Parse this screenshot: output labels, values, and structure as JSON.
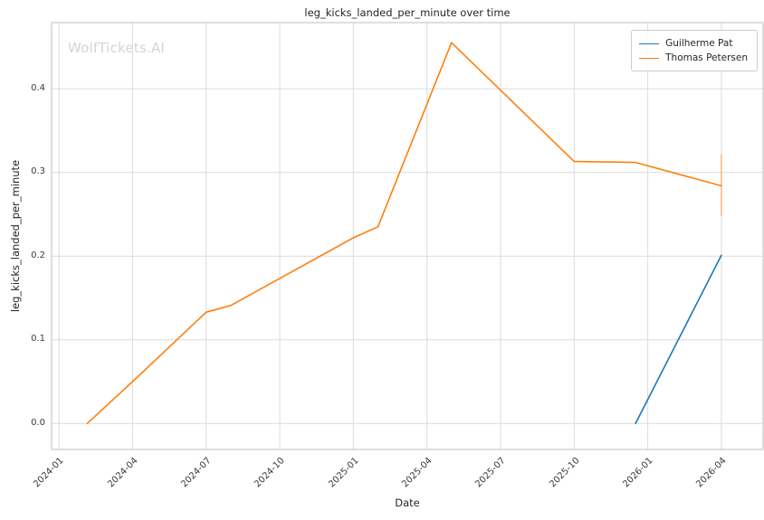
{
  "watermark": "WolfTickets.AI",
  "chart_data": {
    "type": "line",
    "title": "leg_kicks_landed_per_minute over time",
    "xlabel": "Date",
    "ylabel": "leg_kicks_landed_per_minute",
    "grid": true,
    "legend_position": "upper right",
    "x_tick_labels": [
      "2024-01",
      "2024-04",
      "2024-07",
      "2024-10",
      "2025-01",
      "2025-04",
      "2025-07",
      "2025-10",
      "2026-01",
      "2026-04"
    ],
    "x_tick_months": [
      0,
      3,
      6,
      9,
      12,
      15,
      18,
      21,
      24,
      27
    ],
    "y_ticks": [
      0.0,
      0.1,
      0.2,
      0.3,
      0.4
    ],
    "xlim_months": [
      -0.3,
      28.7
    ],
    "ylim": [
      -0.031,
      0.479
    ],
    "grid_color": "#dcdcdc",
    "frame_color": "#c9c9c9",
    "series": [
      {
        "name": "Guilherme Pat",
        "color": "#1f77b4",
        "points": [
          {
            "date": "2025-12-15",
            "month": 23.5,
            "value": 0.0
          },
          {
            "date": "2026-04-01",
            "month": 27,
            "value": 0.201
          }
        ]
      },
      {
        "name": "Thomas Petersen",
        "color": "#ff7f0e",
        "points": [
          {
            "date": "2024-02-05",
            "month": 1.15,
            "value": 0.0
          },
          {
            "date": "2024-04-01",
            "month": 3,
            "value": 0.05
          },
          {
            "date": "2024-07-01",
            "month": 6,
            "value": 0.133
          },
          {
            "date": "2024-08-01",
            "month": 7,
            "value": 0.141
          },
          {
            "date": "2025-01-01",
            "month": 12,
            "value": 0.222
          },
          {
            "date": "2025-02-01",
            "month": 13,
            "value": 0.235
          },
          {
            "date": "2025-05-01",
            "month": 16,
            "value": 0.455
          },
          {
            "date": "2025-10-01",
            "month": 21,
            "value": 0.313
          },
          {
            "date": "2025-12-15",
            "month": 23.5,
            "value": 0.312
          },
          {
            "date": "2026-04-01",
            "month": 27,
            "value": 0.284
          }
        ]
      }
    ],
    "error_bars": [
      {
        "series": "Thomas Petersen",
        "date": "2026-04-01",
        "month": 27,
        "low": 0.248,
        "high": 0.322,
        "color": "#ff7f0e",
        "opacity": 0.45
      }
    ]
  }
}
